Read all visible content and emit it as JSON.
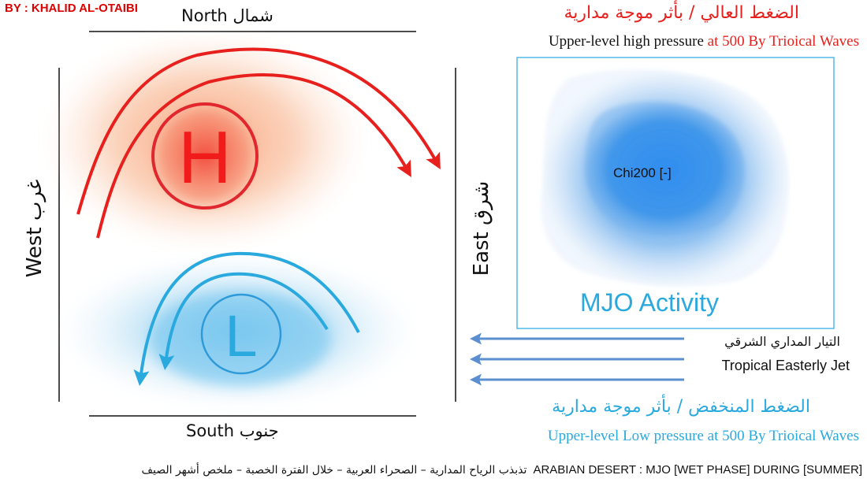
{
  "author": "BY : KHALID AL-OTAIBI",
  "compass": {
    "north": "North شمال",
    "south": "South جنوب",
    "west": "West غرب",
    "east": "East شرق"
  },
  "high_pressure": {
    "symbol": "H",
    "title_ar": "الضغط العالي / بأثر موجة مدارية",
    "title_en_part1": "Upper-level high pressure ",
    "title_en_part2": "at 500 By Trioical Waves"
  },
  "low_pressure": {
    "symbol": "L",
    "title_ar": "الضغط المنخفض / بأثر موجة مدارية",
    "title_en": "Upper-level Low pressure at 500 By Trioical Waves"
  },
  "mjo": {
    "label": "MJO Activity",
    "chi_label": "Chi200 [-]"
  },
  "jet": {
    "label_ar": "التيار المداري الشرقي",
    "label_en": "Tropical Easterly Jet"
  },
  "footer": {
    "title_en": "ARABIAN DESERT : MJO [WET PHASE] DURING [SUMMER]",
    "title_ar": "تذبذب الرياح المدارية – الصحراء العربية – خلال الفترة الخصبة – ملخص أشهر الصيف"
  },
  "colors": {
    "high": "#e8201d",
    "low": "#2aa9df",
    "jet_arrow": "#5b8fd0",
    "mjo_blob": "#3d93e6"
  }
}
